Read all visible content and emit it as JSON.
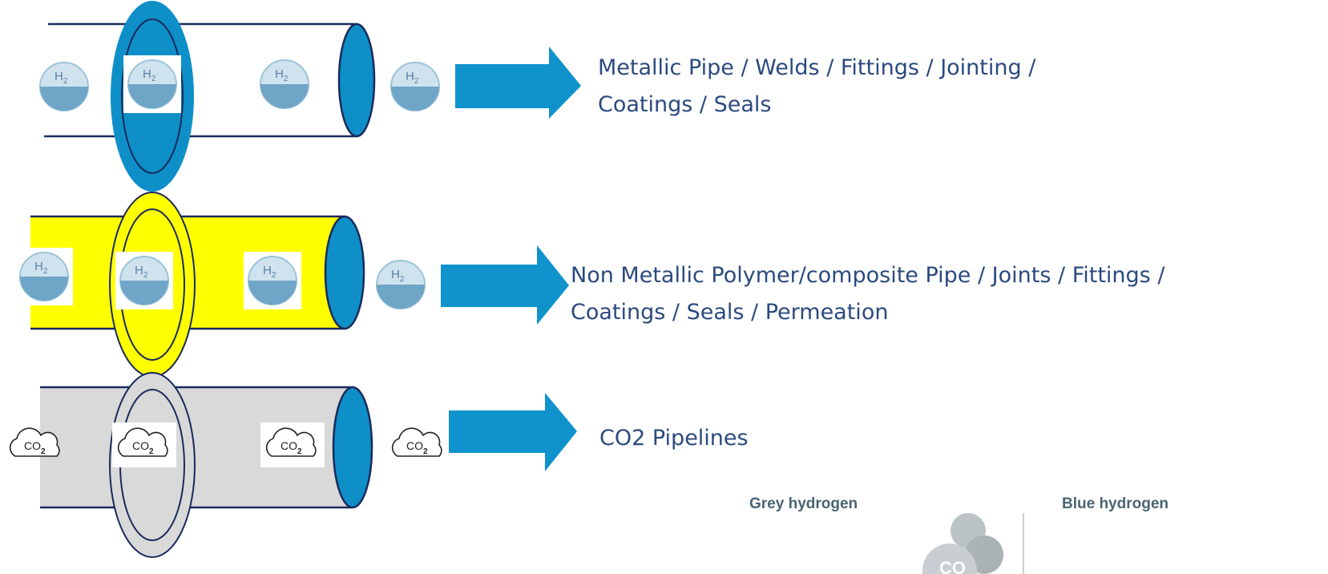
{
  "labels": [
    {
      "lines": [
        "Metallic Pipe / Welds / Fittings / Jointing /",
        "Coatings / Seals"
      ]
    },
    {
      "lines": [
        "Non Metallic Polymer/composite Pipe / Joints / Fittings /",
        "Coatings / Seals / Permeation"
      ]
    },
    {
      "lines": [
        "CO2 Pipelines"
      ]
    }
  ],
  "icons": {
    "h2": [
      "H",
      "2"
    ],
    "co2": [
      "CO",
      "2"
    ]
  },
  "footer": {
    "left": "Grey hydrogen",
    "right": "Blue hydrogen",
    "molecule": "CO"
  }
}
